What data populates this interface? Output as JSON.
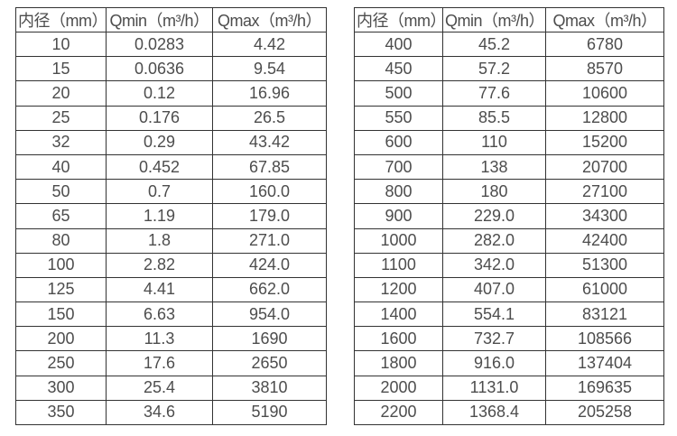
{
  "colors": {
    "border": "#333333",
    "text": "#4d4d4d",
    "background": "#ffffff"
  },
  "chart_data": [
    {
      "type": "table",
      "name": "flow-rate-table-small-diameters",
      "headers": [
        "内径（mm）",
        "Qmin（m³/h）",
        "Qmax（m³/h）"
      ],
      "rows": [
        [
          "10",
          "0.0283",
          "4.42"
        ],
        [
          "15",
          "0.0636",
          "9.54"
        ],
        [
          "20",
          "0.12",
          "16.96"
        ],
        [
          "25",
          "0.176",
          "26.5"
        ],
        [
          "32",
          "0.29",
          "43.42"
        ],
        [
          "40",
          "0.452",
          "67.85"
        ],
        [
          "50",
          "0.7",
          "160.0"
        ],
        [
          "65",
          "1.19",
          "179.0"
        ],
        [
          "80",
          "1.8",
          "271.0"
        ],
        [
          "100",
          "2.82",
          "424.0"
        ],
        [
          "125",
          "4.41",
          "662.0"
        ],
        [
          "150",
          "6.63",
          "954.0"
        ],
        [
          "200",
          "11.3",
          "1690"
        ],
        [
          "250",
          "17.6",
          "2650"
        ],
        [
          "300",
          "25.4",
          "3810"
        ],
        [
          "350",
          "34.6",
          "5190"
        ]
      ]
    },
    {
      "type": "table",
      "name": "flow-rate-table-large-diameters",
      "headers": [
        "内径（mm）",
        "Qmin（m³/h）",
        "Qmax（m³/h）"
      ],
      "rows": [
        [
          "400",
          "45.2",
          "6780"
        ],
        [
          "450",
          "57.2",
          "8570"
        ],
        [
          "500",
          "77.6",
          "10600"
        ],
        [
          "550",
          "85.5",
          "12800"
        ],
        [
          "600",
          "110",
          "15200"
        ],
        [
          "700",
          "138",
          "20700"
        ],
        [
          "800",
          "180",
          "27100"
        ],
        [
          "900",
          "229.0",
          "34300"
        ],
        [
          "1000",
          "282.0",
          "42400"
        ],
        [
          "1100",
          "342.0",
          "51300"
        ],
        [
          "1200",
          "407.0",
          "61000"
        ],
        [
          "1400",
          "554.1",
          "83121"
        ],
        [
          "1600",
          "732.7",
          "108566"
        ],
        [
          "1800",
          "916.0",
          "137404"
        ],
        [
          "2000",
          "1131.0",
          "169635"
        ],
        [
          "2200",
          "1368.4",
          "205258"
        ]
      ]
    }
  ]
}
